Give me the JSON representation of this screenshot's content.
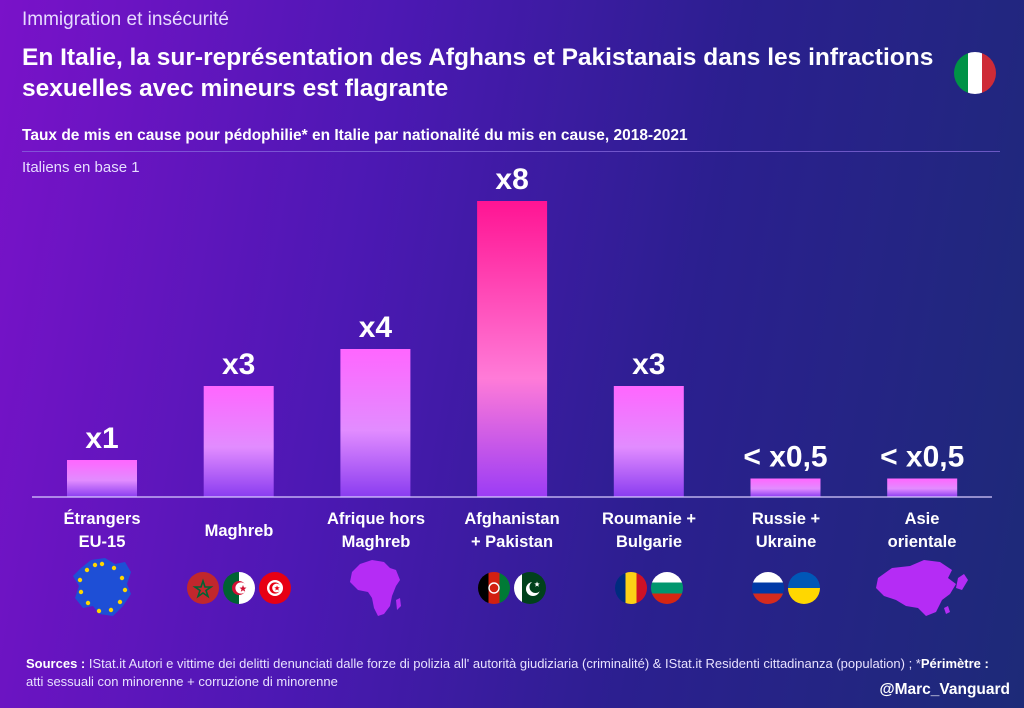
{
  "kicker": "Immigration et insécurité",
  "title": "En Italie, la sur-représentation des Afghans et Pakistanais dans les infractions sexuelles avec mineurs est flagrante",
  "subtitle": "Taux de mis en cause pour pédophilie* en Italie par nationalité du mis en cause, 2018-2021",
  "base_note": "Italiens en base 1",
  "chart_data": {
    "type": "bar",
    "title": "Taux de mis en cause pour pédophilie* en Italie par nationalité du mis en cause, 2018-2021",
    "ylabel": "Italiens en base 1",
    "ylim": [
      0,
      8
    ],
    "categories": [
      "Étrangers EU-15",
      "Maghreb",
      "Afrique hors Maghreb",
      "Afghanistan + Pakistan",
      "Roumanie + Bulgarie",
      "Russie + Ukraine",
      "Asie orientale"
    ],
    "values": [
      1,
      3,
      4,
      8,
      3,
      0.5,
      0.5
    ],
    "value_labels": [
      "x1",
      "x3",
      "x4",
      "x8",
      "x3",
      "< x0,5",
      "< x0,5"
    ],
    "highlight_index": 3
  },
  "categories_display": [
    {
      "line1": "Étrangers",
      "line2": "EU-15"
    },
    {
      "line1": "Maghreb",
      "line2": ""
    },
    {
      "line1": "Afrique hors",
      "line2": "Maghreb"
    },
    {
      "line1": "Afghanistan",
      "line2": "+ Pakistan"
    },
    {
      "line1": "Roumanie +",
      "line2": "Bulgarie"
    },
    {
      "line1": "Russie +",
      "line2": "Ukraine"
    },
    {
      "line1": "Asie",
      "line2": "orientale"
    }
  ],
  "colors": {
    "bar_top": "#ff66ff",
    "bar_bottom": "#8a3cf0",
    "highlight_top": "#ff1493",
    "highlight_bottom": "#9b3cf5",
    "region_shape": "#b52cf5",
    "eu_blue": "#1e4fd6",
    "eu_star": "#ffd700"
  },
  "sources": {
    "sources_label": "Sources :",
    "sources_text": " IStat.it Autori e vittime dei delitti denunciati dalle forze di polizia all' autorità giudiziaria (criminalité) & IStat.it Residenti cittadinanza (population) ; *",
    "perimetre_label": "Périmètre :",
    "perimetre_text": " atti sessuali con minorenne + corruzione di minorenne"
  },
  "handle": "@Marc_Vanguard"
}
